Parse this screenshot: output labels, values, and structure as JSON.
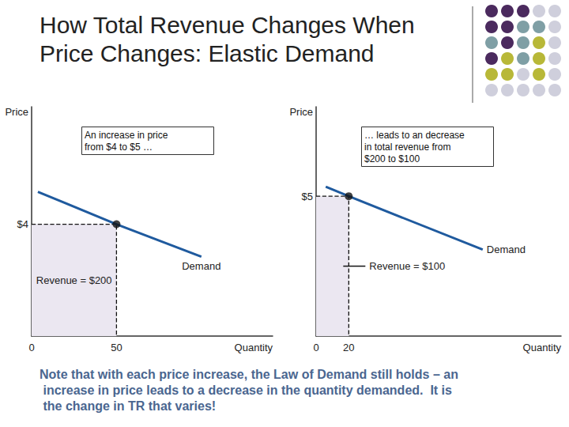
{
  "title": "How Total Revenue Changes When Price Changes: Elastic Demand",
  "chart_data": [
    {
      "type": "line",
      "x_label": "Quantity",
      "y_label": "Price",
      "annotation": "An increase in price from $4 to $5 …",
      "series": [
        {
          "name": "Demand",
          "color": "#1f5a9e",
          "x": [
            3.7,
            50,
            100
          ],
          "values": [
            5.16,
            4,
            2.84
          ]
        }
      ],
      "point": {
        "x": 50,
        "y": 4
      },
      "revenue_label": "Revenue = $200",
      "xlim": [
        0,
        142
      ],
      "ylim": [
        0,
        8.2
      ],
      "xticks": [
        0,
        50
      ],
      "yticks": [
        {
          "value": 4,
          "label": "$4"
        }
      ],
      "grid": false
    },
    {
      "type": "line",
      "x_label": "Quantity",
      "y_label": "Price",
      "annotation": "… leads to an decrease in total revenue from $200 to $100",
      "series": [
        {
          "name": "Demand",
          "color": "#1f5a9e",
          "x": [
            5.9,
            20,
            102
          ],
          "values": [
            5.34,
            5,
            3.09
          ]
        }
      ],
      "point": {
        "x": 20,
        "y": 5
      },
      "revenue_label": "Revenue = $100",
      "xlim": [
        0,
        150
      ],
      "ylim": [
        0,
        8.2
      ],
      "xticks": [
        0,
        20
      ],
      "yticks": [
        {
          "value": 5,
          "label": "$5"
        }
      ],
      "grid": false
    }
  ],
  "note": "Note that with each price increase, the Law of Demand still holds – an increase in price leads to a decrease in the quantity demanded.  It is the change in TR that varies!"
}
